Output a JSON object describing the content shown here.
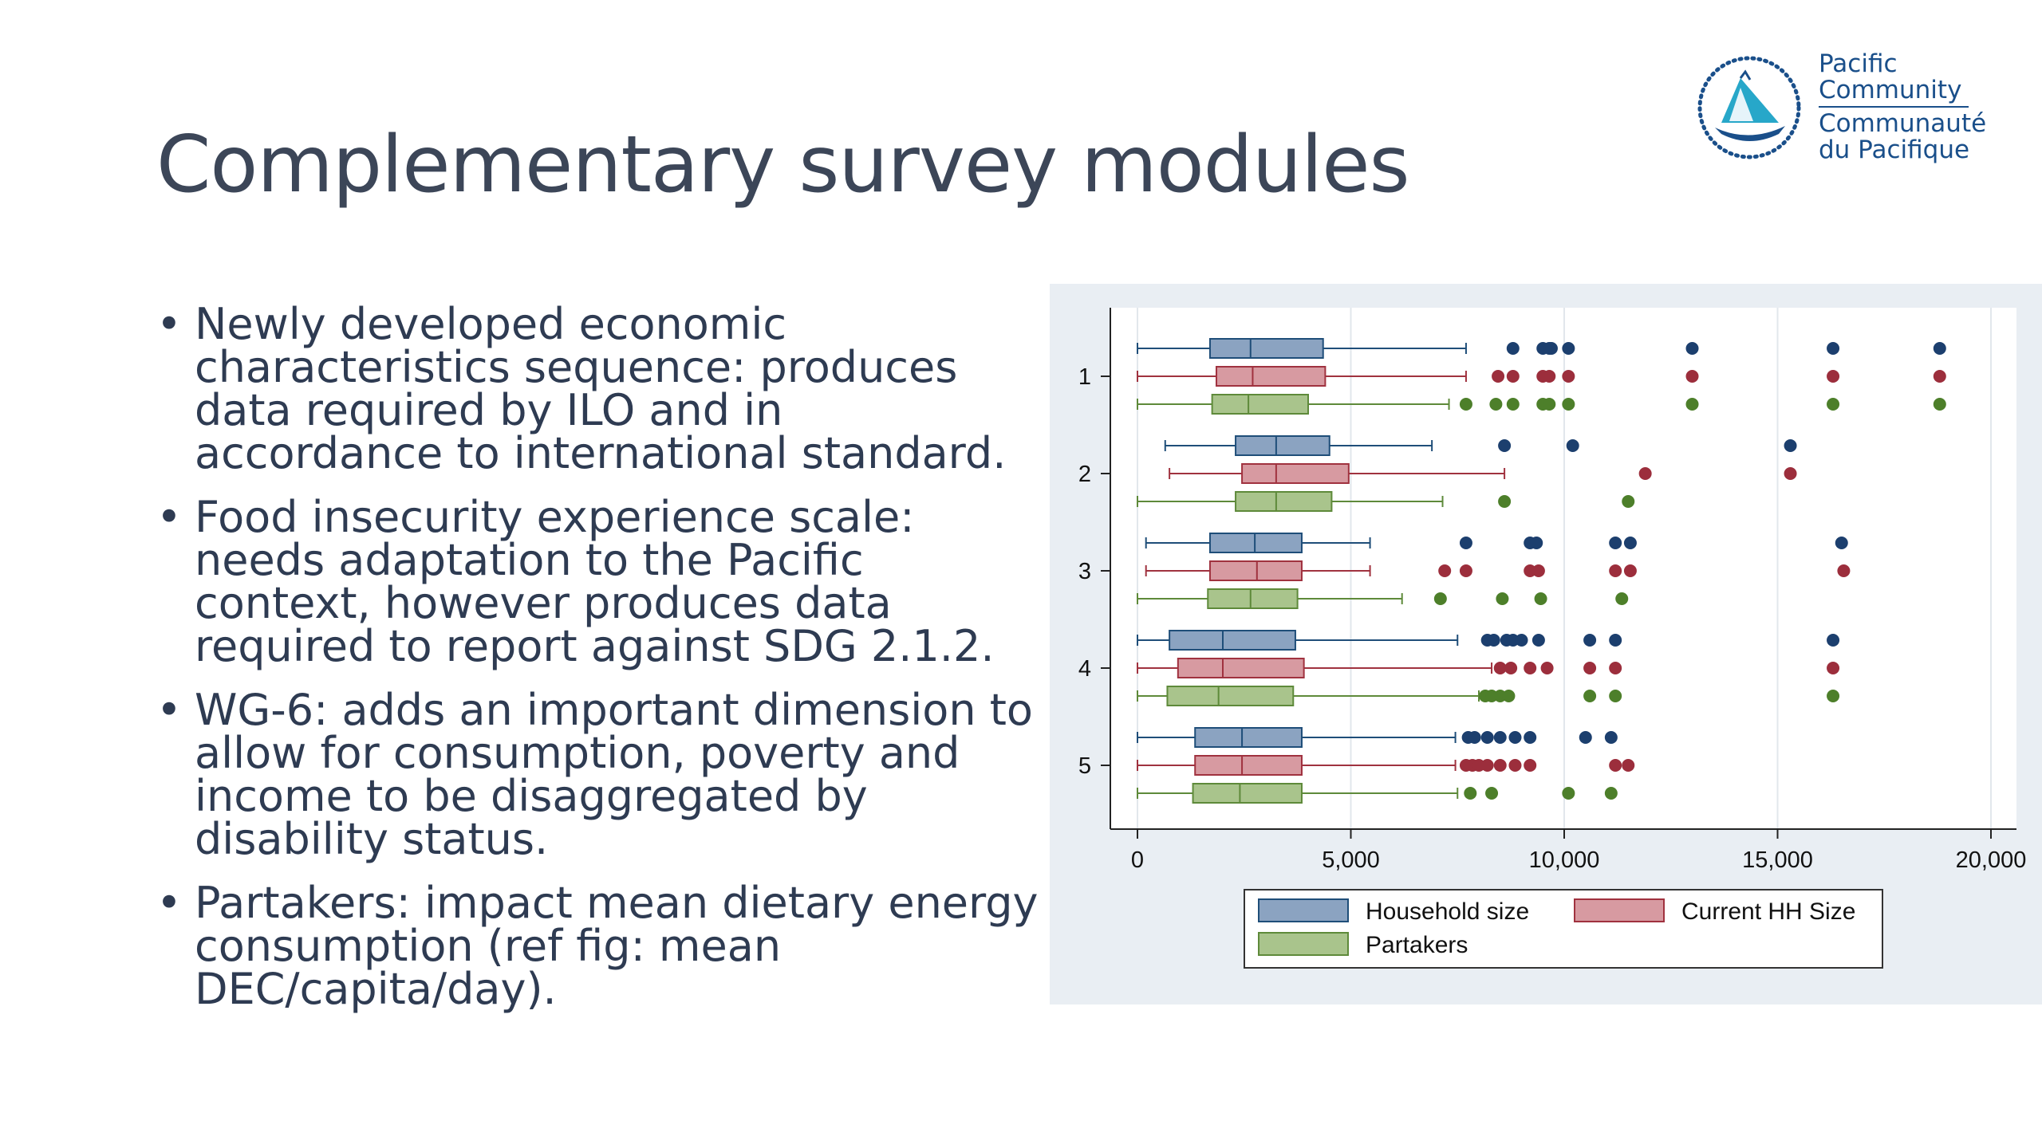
{
  "slide": {
    "title": "Complementary survey modules"
  },
  "logo": {
    "line1": "Pacific",
    "line2": "Community",
    "line3": "Communauté",
    "line4": "du Pacifique"
  },
  "bullets": [
    "Newly developed economic characteristics sequence: produces data required by ILO and in accordance to international standard.",
    "Food insecurity experience scale: needs adaptation to the Pacific context, however produces data required to report against SDG 2.1.2.",
    "WG-6: adds an important dimension to allow for consumption, poverty and income to be disaggregated by disability status.",
    "Partakers: impact mean dietary energy consumption (ref fig: mean DEC/capita/day)."
  ],
  "colors": {
    "title": "#3c4658",
    "text": "#2e3b52",
    "panel_bg": "#e9eef3",
    "household_fill": "#8ba3c1",
    "household_stroke": "#1f4e79",
    "household_dot": "#1c3f6e",
    "current_fill": "#d79aa1",
    "current_stroke": "#a0323f",
    "current_dot": "#9c2e3c",
    "partakers_fill": "#a9c48c",
    "partakers_stroke": "#5e8a3a",
    "partakers_dot": "#4d7f2a"
  },
  "chart_data": {
    "type": "boxplot",
    "orientation": "horizontal",
    "categories": [
      "1",
      "2",
      "3",
      "4",
      "5"
    ],
    "xlim": [
      0,
      20000
    ],
    "xticks": [
      0,
      5000,
      10000,
      15000,
      20000
    ],
    "xtick_labels": [
      "0",
      "5,000",
      "10,000",
      "15,000",
      "20,000"
    ],
    "grid": true,
    "legend_position": "bottom",
    "series": [
      {
        "name": "Household size",
        "color_key": "household",
        "boxes": [
          {
            "whisker_low": 0,
            "q1": 1700,
            "median": 2650,
            "q3": 4350,
            "whisker_high": 7700,
            "outliers": [
              8800,
              9500,
              9650,
              9700,
              10100,
              13000,
              16300,
              18800
            ]
          },
          {
            "whisker_low": 650,
            "q1": 2300,
            "median": 3250,
            "q3": 4500,
            "whisker_high": 6900,
            "outliers": [
              8600,
              10200,
              15300
            ]
          },
          {
            "whisker_low": 200,
            "q1": 1700,
            "median": 2750,
            "q3": 3850,
            "whisker_high": 5450,
            "outliers": [
              7700,
              9200,
              9350,
              11200,
              11550,
              16500
            ]
          },
          {
            "whisker_low": 0,
            "q1": 750,
            "median": 2000,
            "q3": 3700,
            "whisker_high": 7500,
            "outliers": [
              8200,
              8350,
              8650,
              8800,
              9000,
              9400,
              10600,
              11200,
              16300
            ]
          },
          {
            "whisker_low": 0,
            "q1": 1350,
            "median": 2450,
            "q3": 3850,
            "whisker_high": 7450,
            "outliers": [
              7750,
              7900,
              8200,
              8500,
              8850,
              9200,
              10500,
              11100
            ]
          }
        ]
      },
      {
        "name": "Current HH Size",
        "color_key": "current",
        "boxes": [
          {
            "whisker_low": 0,
            "q1": 1850,
            "median": 2700,
            "q3": 4400,
            "whisker_high": 7700,
            "outliers": [
              8450,
              8800,
              9500,
              9650,
              10100,
              13000,
              16300,
              18800
            ]
          },
          {
            "whisker_low": 750,
            "q1": 2450,
            "median": 3250,
            "q3": 4950,
            "whisker_high": 8600,
            "outliers": [
              11900,
              15300
            ]
          },
          {
            "whisker_low": 200,
            "q1": 1700,
            "median": 2800,
            "q3": 3850,
            "whisker_high": 5450,
            "outliers": [
              7200,
              7700,
              9200,
              9400,
              11200,
              11550,
              16550
            ]
          },
          {
            "whisker_low": 0,
            "q1": 950,
            "median": 2000,
            "q3": 3900,
            "whisker_high": 8300,
            "outliers": [
              8500,
              8750,
              9200,
              9600,
              10600,
              11200,
              16300
            ]
          },
          {
            "whisker_low": 0,
            "q1": 1350,
            "median": 2450,
            "q3": 3850,
            "whisker_high": 7450,
            "outliers": [
              7700,
              7850,
              8000,
              8200,
              8500,
              8850,
              9200,
              11200,
              11500
            ]
          }
        ]
      },
      {
        "name": "Partakers",
        "color_key": "partakers",
        "boxes": [
          {
            "whisker_low": 0,
            "q1": 1750,
            "median": 2600,
            "q3": 4000,
            "whisker_high": 7300,
            "outliers": [
              7700,
              8400,
              8800,
              9500,
              9650,
              10100,
              13000,
              16300,
              18800
            ]
          },
          {
            "whisker_low": 0,
            "q1": 2300,
            "median": 3250,
            "q3": 4550,
            "whisker_high": 7150,
            "outliers": [
              8600,
              11500
            ]
          },
          {
            "whisker_low": 0,
            "q1": 1650,
            "median": 2650,
            "q3": 3750,
            "whisker_high": 6200,
            "outliers": [
              7100,
              8550,
              9450,
              11350
            ]
          },
          {
            "whisker_low": 0,
            "q1": 700,
            "median": 1900,
            "q3": 3650,
            "whisker_high": 8000,
            "outliers": [
              8150,
              8300,
              8500,
              8700,
              10600,
              11200,
              16300
            ]
          },
          {
            "whisker_low": 0,
            "q1": 1300,
            "median": 2400,
            "q3": 3850,
            "whisker_high": 7500,
            "outliers": [
              7800,
              8300,
              10100,
              11100
            ]
          }
        ]
      }
    ]
  }
}
